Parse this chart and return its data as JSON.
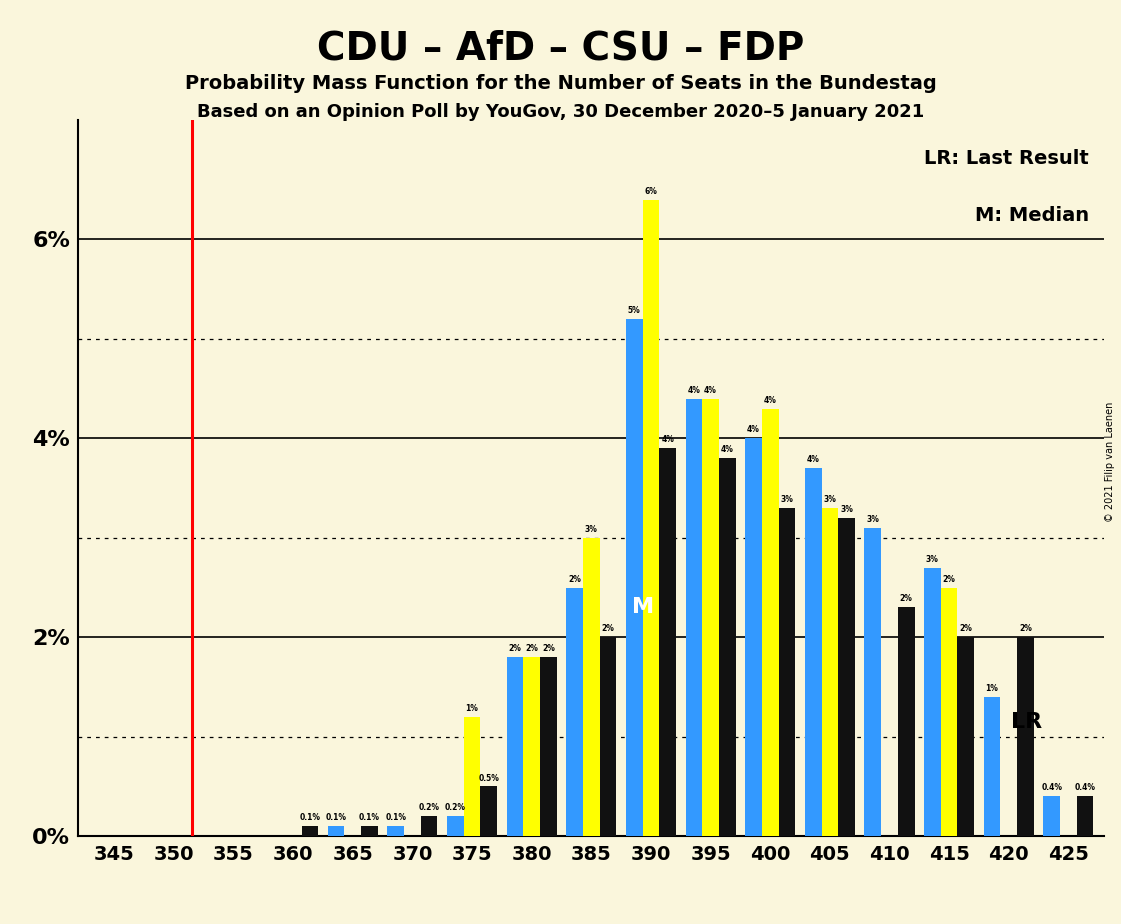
{
  "title": "CDU – AfD – CSU – FDP",
  "subtitle1": "Probability Mass Function for the Number of Seats in the Bundestag",
  "subtitle2": "Based on an Opinion Poll by YouGov, 30 December 2020–5 January 2021",
  "copyright": "© 2021 Filip van Laenen",
  "legend_lr": "LR: Last Result",
  "legend_m": "M: Median",
  "lr_label": "LR",
  "m_label": "M",
  "lr_seat": 355,
  "median_seat": 390,
  "background_color": "#FAF6DC",
  "colors": {
    "blue": "#3399FF",
    "yellow": "#FFFF00",
    "black": "#111111",
    "red_line": "#FF0000"
  },
  "seats": [
    345,
    346,
    347,
    348,
    349,
    350,
    351,
    352,
    353,
    354,
    355,
    356,
    357,
    358,
    359,
    360,
    361,
    362,
    363,
    364,
    365,
    366,
    367,
    368,
    369,
    370,
    371,
    372,
    373,
    374,
    375,
    376,
    377,
    378,
    379,
    380,
    381,
    382,
    383,
    384,
    385,
    386,
    387,
    388,
    389,
    390,
    391,
    392,
    393,
    394,
    395,
    396,
    397,
    398,
    399,
    400,
    401,
    402,
    403,
    404,
    405,
    406,
    407,
    408,
    409,
    410,
    411,
    412,
    413,
    414,
    415,
    416,
    417,
    418,
    419,
    420,
    421,
    422,
    423,
    424,
    425
  ],
  "blue_vals": [
    0.0,
    0.0,
    0.0,
    0.0,
    0.0,
    0.0,
    0.0,
    0.0,
    0.0,
    0.0,
    0.0,
    0.0,
    0.0,
    0.0,
    0.0,
    0.0,
    0.0,
    0.0,
    0.0,
    0.0,
    0.1,
    0.0,
    0.0,
    0.0,
    0.0,
    0.1,
    0.0,
    0.0,
    0.0,
    0.0,
    0.2,
    0.0,
    0.0,
    0.0,
    0.0,
    1.8,
    0.0,
    0.0,
    0.0,
    0.0,
    2.5,
    0.0,
    0.0,
    0.0,
    0.0,
    5.2,
    0.0,
    0.0,
    0.0,
    0.0,
    4.4,
    0.0,
    0.0,
    0.0,
    0.0,
    4.0,
    0.0,
    0.0,
    0.0,
    0.0,
    3.7,
    0.0,
    0.0,
    0.0,
    0.0,
    3.1,
    0.0,
    0.0,
    0.0,
    0.0,
    2.7,
    0.0,
    0.0,
    0.0,
    0.0,
    1.4,
    0.0,
    0.0,
    0.0,
    0.0,
    0.4
  ],
  "yellow_vals": [
    0.0,
    0.0,
    0.0,
    0.0,
    0.0,
    0.0,
    0.0,
    0.0,
    0.0,
    0.0,
    0.0,
    0.0,
    0.0,
    0.0,
    0.0,
    0.0,
    0.0,
    0.0,
    0.0,
    0.0,
    0.0,
    0.0,
    0.0,
    0.0,
    0.0,
    0.0,
    0.0,
    0.0,
    0.0,
    0.0,
    1.2,
    0.0,
    0.0,
    0.0,
    0.0,
    1.8,
    0.0,
    0.0,
    0.0,
    0.0,
    3.0,
    0.0,
    0.0,
    0.0,
    0.0,
    6.4,
    0.0,
    0.0,
    0.0,
    0.0,
    4.4,
    0.0,
    0.0,
    0.0,
    0.0,
    4.3,
    0.0,
    0.0,
    0.0,
    0.0,
    3.3,
    0.0,
    0.0,
    0.0,
    0.0,
    0.0,
    0.0,
    0.0,
    0.0,
    0.0,
    2.5,
    0.0,
    0.0,
    0.0,
    0.0,
    0.0,
    0.0,
    0.0,
    0.0,
    0.0,
    0.0
  ],
  "black_vals": [
    0.0,
    0.0,
    0.0,
    0.0,
    0.0,
    0.0,
    0.0,
    0.0,
    0.0,
    0.0,
    0.0,
    0.0,
    0.0,
    0.0,
    0.0,
    0.1,
    0.0,
    0.0,
    0.0,
    0.0,
    0.1,
    0.0,
    0.0,
    0.0,
    0.0,
    0.2,
    0.0,
    0.0,
    0.0,
    0.0,
    0.5,
    0.0,
    0.0,
    0.0,
    0.0,
    1.8,
    0.0,
    0.0,
    0.0,
    0.0,
    2.0,
    0.0,
    0.0,
    0.0,
    0.0,
    3.9,
    0.0,
    0.0,
    0.0,
    0.0,
    3.8,
    0.0,
    0.0,
    0.0,
    0.0,
    3.3,
    0.0,
    0.0,
    0.0,
    0.0,
    3.2,
    0.0,
    0.0,
    0.0,
    0.0,
    2.3,
    0.0,
    0.0,
    0.0,
    0.0,
    2.0,
    0.0,
    0.0,
    0.0,
    0.0,
    2.0,
    0.0,
    0.0,
    0.0,
    0.0,
    0.4
  ],
  "xlim_low": 342,
  "xlim_high": 428,
  "ylim_high": 7.2,
  "yticks": [
    0,
    1,
    2,
    3,
    4,
    5,
    6,
    7
  ],
  "ytick_labels": [
    "0%",
    "",
    "2%",
    "",
    "4%",
    "",
    "6%",
    ""
  ],
  "solid_gridlines": [
    2,
    4,
    6
  ],
  "dotted_gridlines": [
    1,
    3,
    5
  ],
  "xtick_seats": [
    345,
    350,
    355,
    360,
    365,
    370,
    375,
    380,
    385,
    390,
    395,
    400,
    405,
    410,
    415,
    420,
    425
  ]
}
